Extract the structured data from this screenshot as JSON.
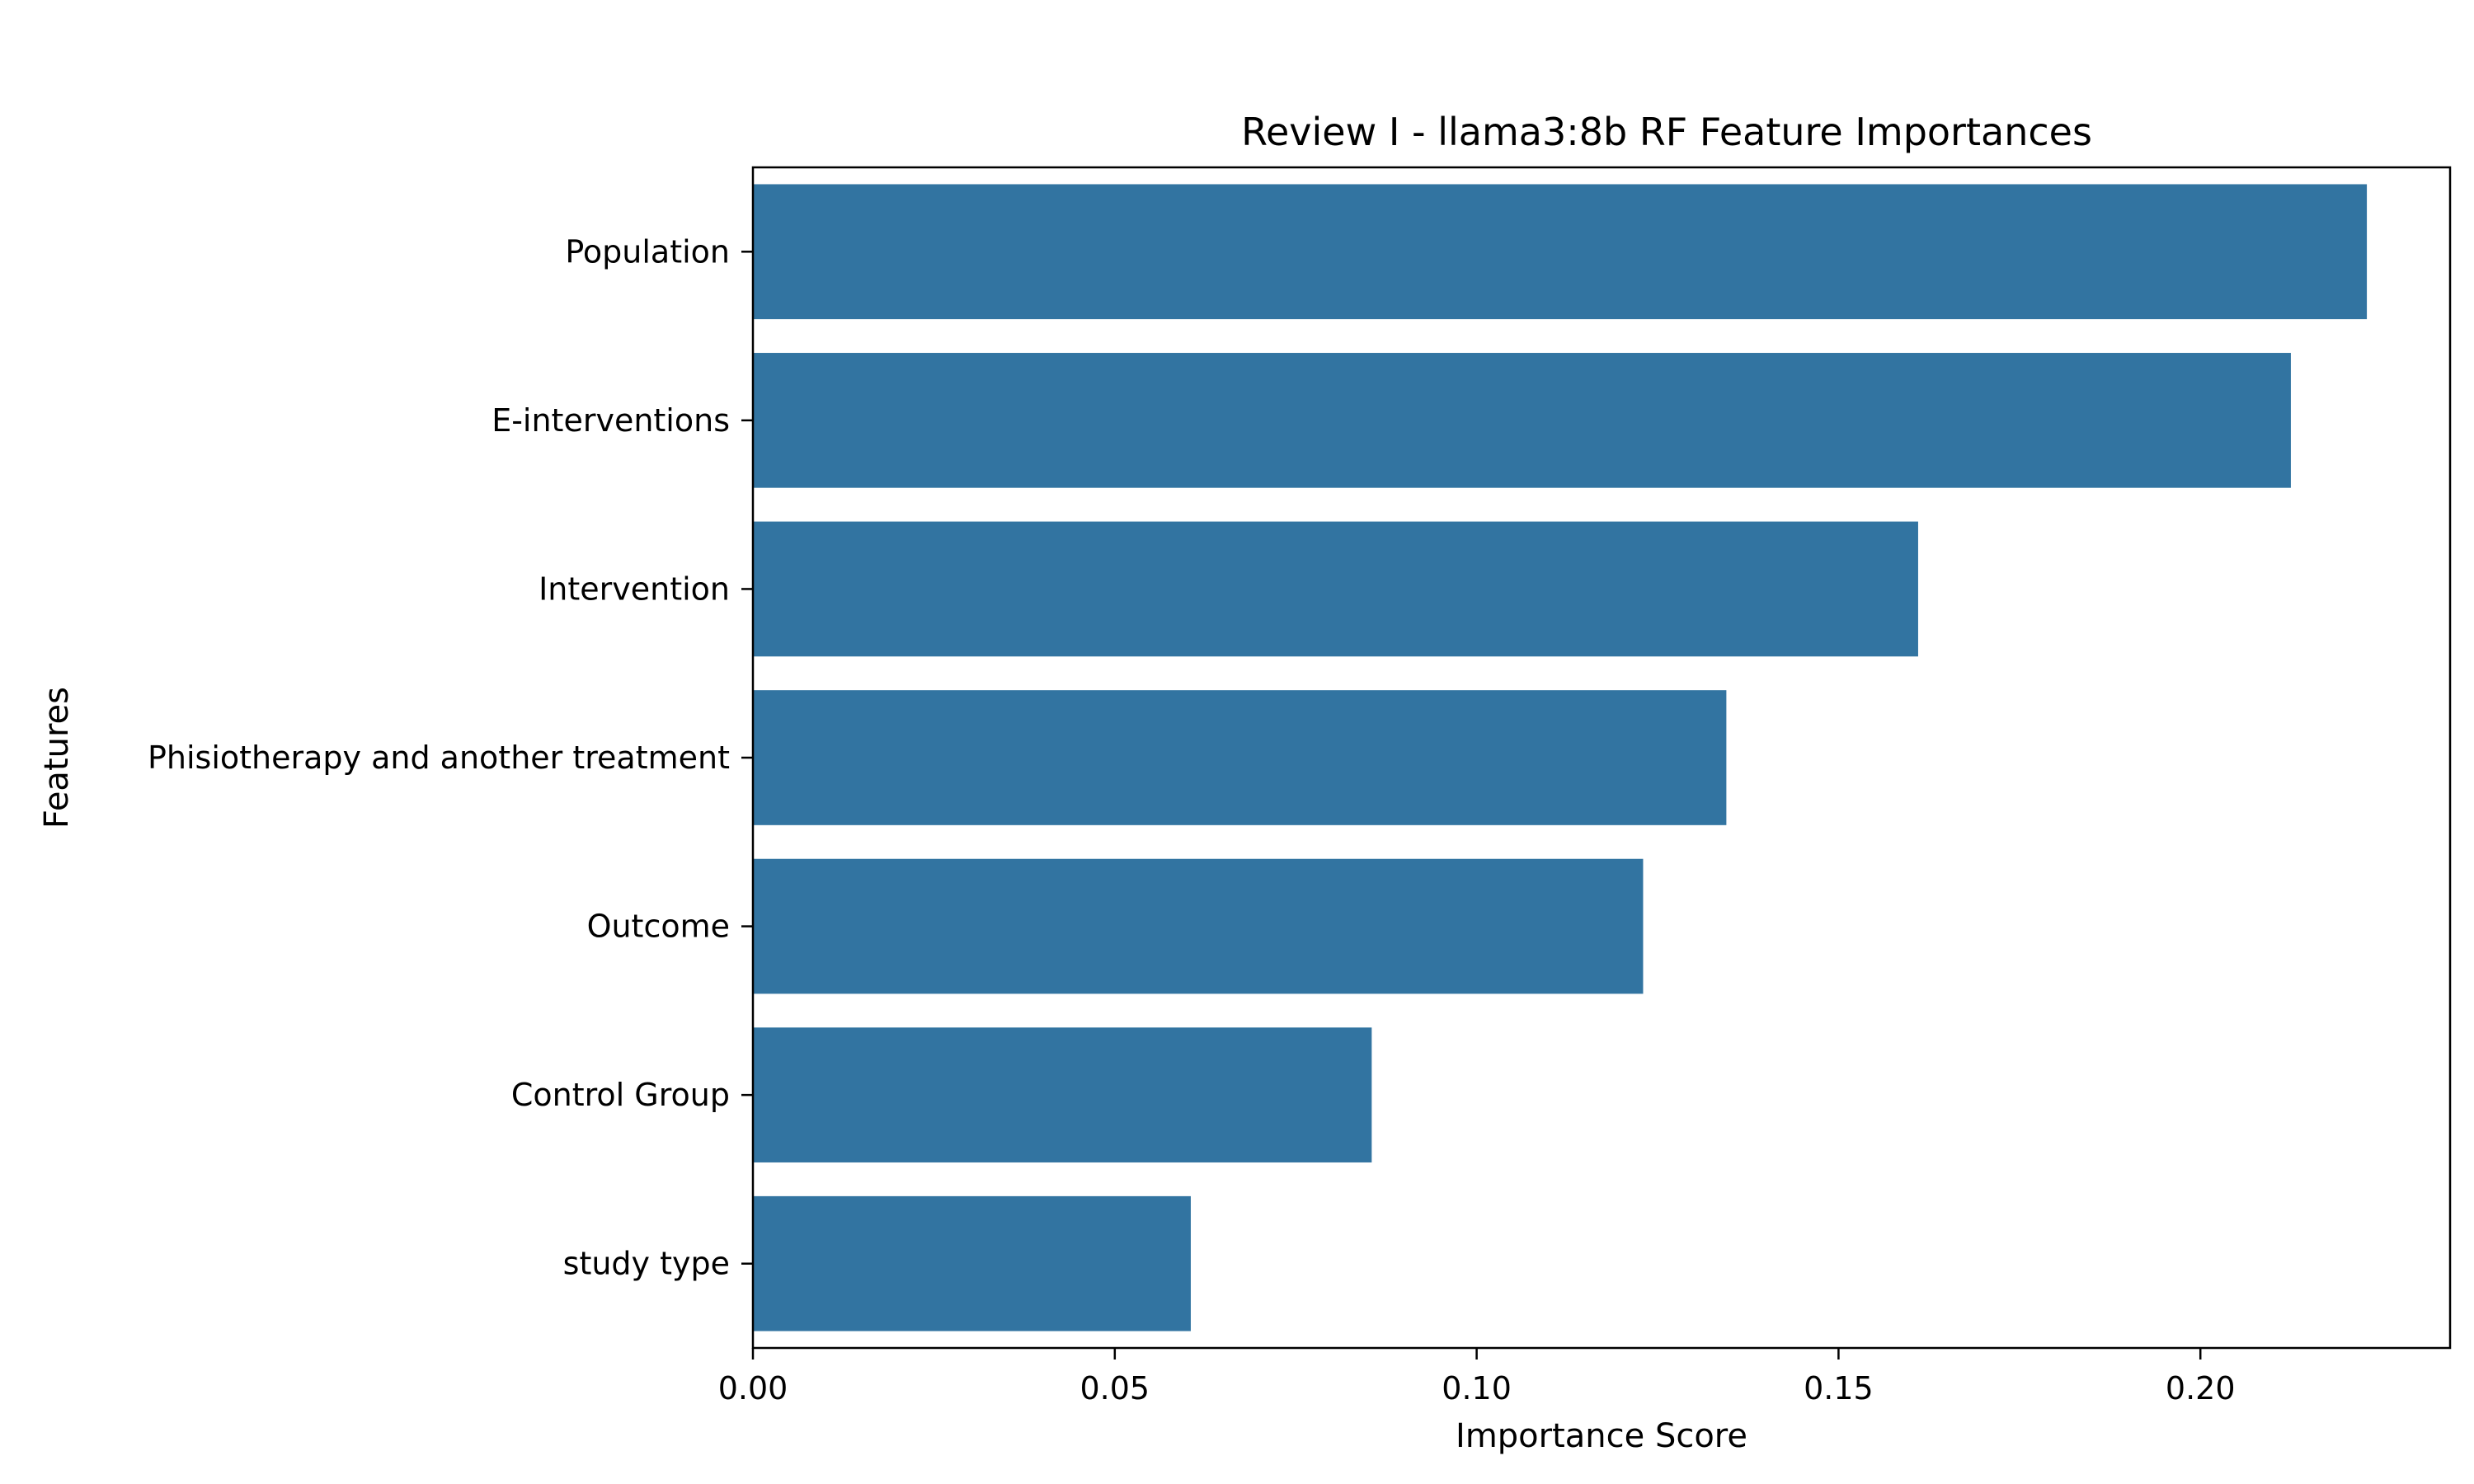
{
  "chart_data": {
    "type": "bar",
    "orientation": "horizontal",
    "title": "Review I - llama3:8b RF Feature Importances",
    "xlabel": "Importance Score",
    "ylabel": "Features",
    "categories": [
      "Population",
      "E-interventions",
      "Intervention",
      "Phisiotherapy and another treatment",
      "Outcome",
      "Control Group",
      "study type"
    ],
    "values": [
      0.223,
      0.2125,
      0.161,
      0.1345,
      0.123,
      0.0855,
      0.0605
    ],
    "xlim": [
      0,
      0.2345
    ],
    "xticks": [
      0.0,
      0.05,
      0.1,
      0.15,
      0.2
    ],
    "xtick_labels": [
      "0.00",
      "0.05",
      "0.10",
      "0.15",
      "0.20"
    ],
    "grid": false,
    "bar_color": "#3274a1"
  }
}
